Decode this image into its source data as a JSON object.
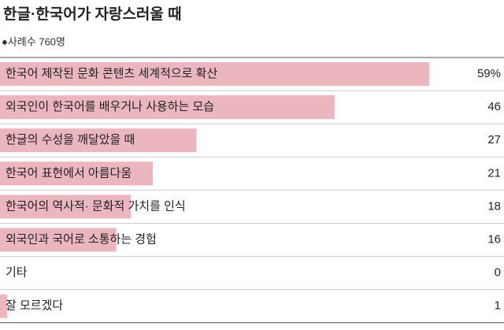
{
  "chart_data": {
    "type": "bar",
    "orientation": "horizontal",
    "title": "한글·한국어가 자랑스러울 때",
    "subtitle": "●사례수 760명",
    "categories": [
      "한국어 제작된 문화 콘텐츠 세계적으로 확산",
      "외국인이 한국어를 배우거나 사용하는 모습",
      "한글의 수성을 깨달았을 때",
      "한국어 표현에서 아름다움",
      "한국어의 역사적· 문화적 가치를 인식",
      "외국인과 국어로 소통하는 경험",
      "기타",
      "잘 모르겠다"
    ],
    "values": [
      59,
      46,
      27,
      21,
      18,
      16,
      0,
      1
    ],
    "value_labels": [
      "59%",
      "46",
      "27",
      "21",
      "18",
      "16",
      "0",
      "1"
    ],
    "color": "#ebb6be"
  }
}
